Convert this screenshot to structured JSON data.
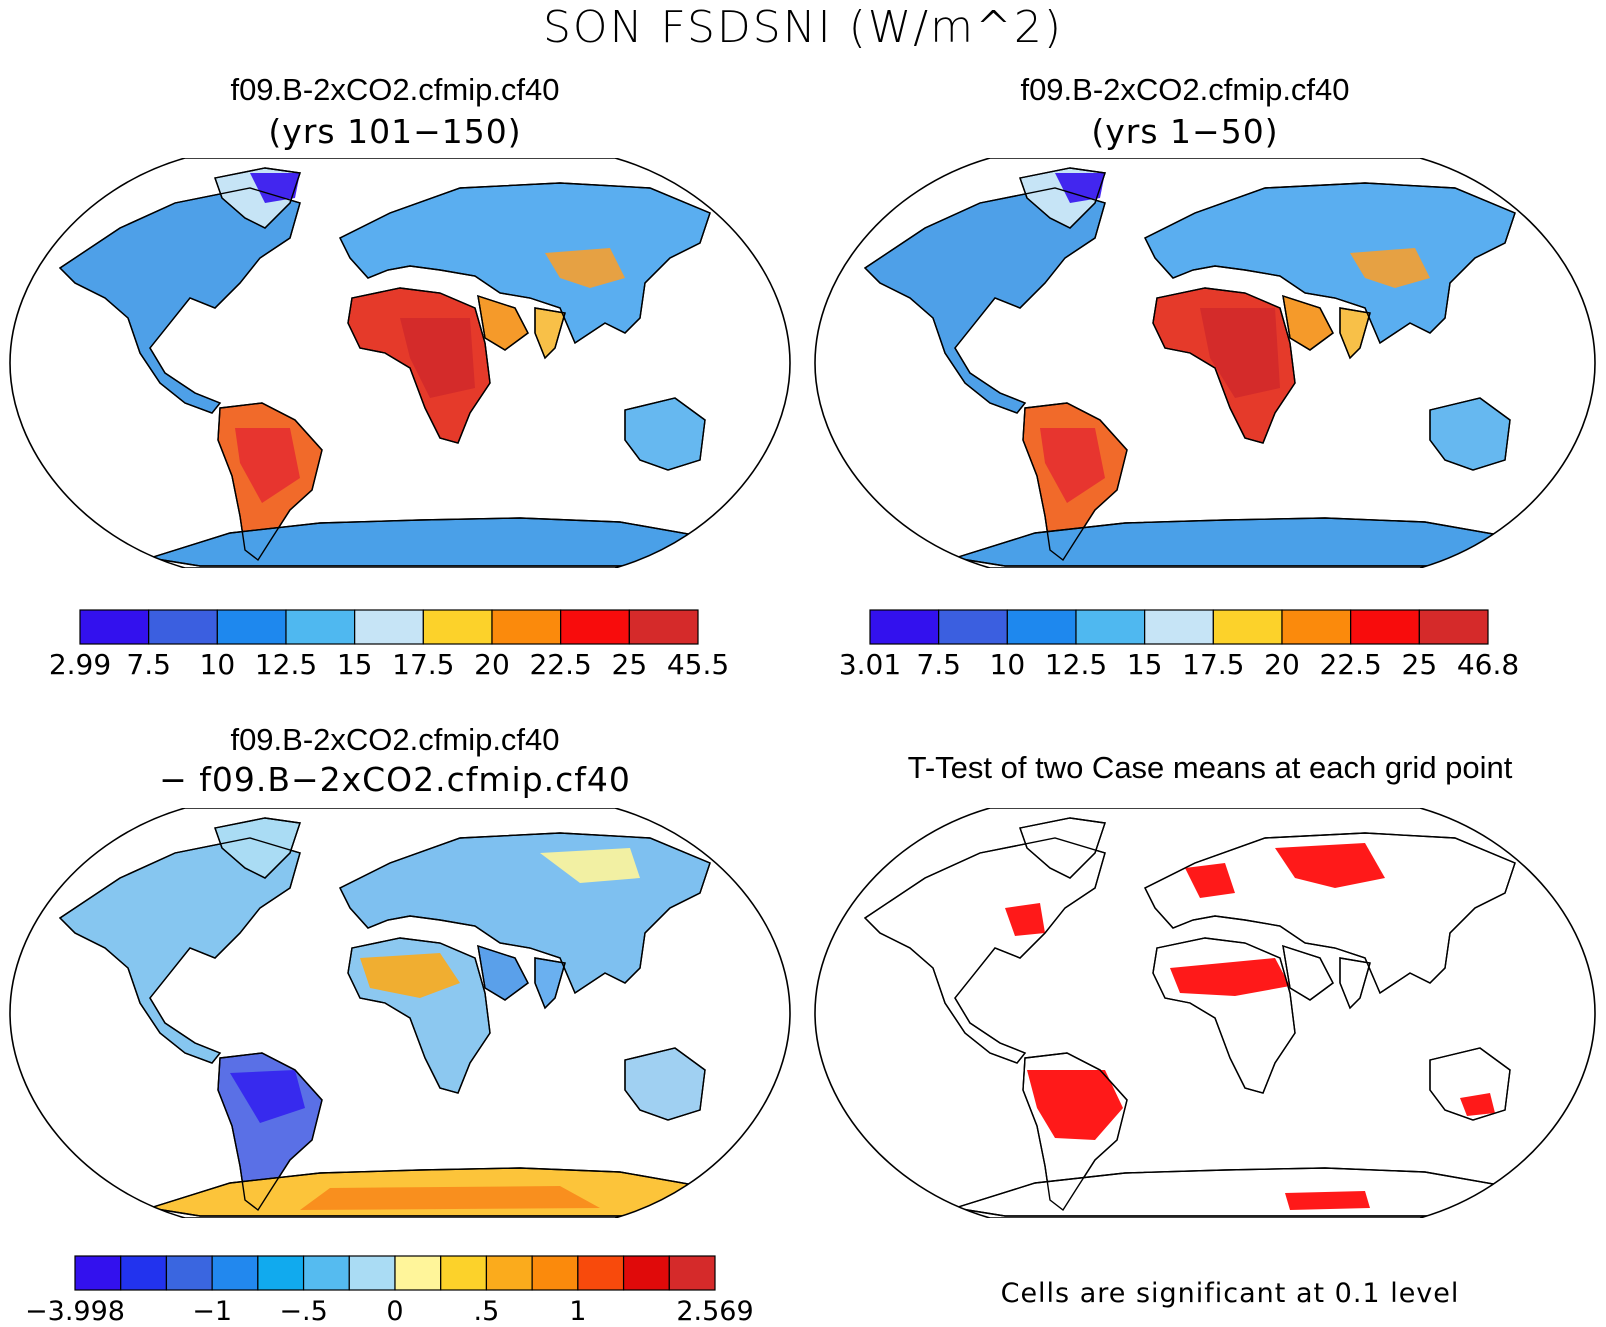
{
  "title": "SON FSDSNI (W/m^2)",
  "panels": [
    {
      "id": "panel-case1",
      "title": "f09.B-2xCO2.cfmip.cf40",
      "subtitle": "(yrs 101−150)",
      "colorbar": {
        "colors": [
          "#3311ee",
          "#3b5fe0",
          "#1e88ee",
          "#4fb8f0",
          "#c6e4f6",
          "#fcd22a",
          "#fb8a0c",
          "#f80c0c",
          "#d52a2a"
        ],
        "labels": [
          "2.99",
          "7.5",
          "10",
          "12.5",
          "15",
          "17.5",
          "20",
          "22.5",
          "25",
          "45.5"
        ]
      }
    },
    {
      "id": "panel-case2",
      "title": "f09.B-2xCO2.cfmip.cf40",
      "subtitle": "(yrs 1−50)",
      "colorbar": {
        "colors": [
          "#3311ee",
          "#3b5fe0",
          "#1e88ee",
          "#4fb8f0",
          "#c6e4f6",
          "#fcd22a",
          "#fb8a0c",
          "#f80c0c",
          "#d52a2a"
        ],
        "labels": [
          "3.01",
          "7.5",
          "10",
          "12.5",
          "15",
          "17.5",
          "20",
          "22.5",
          "25",
          "46.8"
        ]
      }
    },
    {
      "id": "panel-diff",
      "title": "f09.B-2xCO2.cfmip.cf40",
      "subtitle": "− f09.B−2xCO2.cfmip.cf40",
      "colorbar": {
        "colors": [
          "#3311ee",
          "#2233ee",
          "#3a66e0",
          "#2288ee",
          "#11aaee",
          "#55bbf0",
          "#aadcf4",
          "#fff59a",
          "#fcd22a",
          "#fbab1c",
          "#fb8a0c",
          "#f84a0c",
          "#e00a0a",
          "#d52a2a"
        ],
        "labels": [
          "−3.998",
          "−1",
          "−.5",
          "0",
          ".5",
          "1",
          "2.569"
        ],
        "label_bins": [
          0,
          3,
          5,
          7,
          9,
          11,
          14
        ]
      }
    },
    {
      "id": "panel-ttest",
      "title": "T-Test of two Case means at each grid point",
      "note": "Cells are significant at 0.1 level",
      "significant_color": "#ff0000"
    }
  ]
}
